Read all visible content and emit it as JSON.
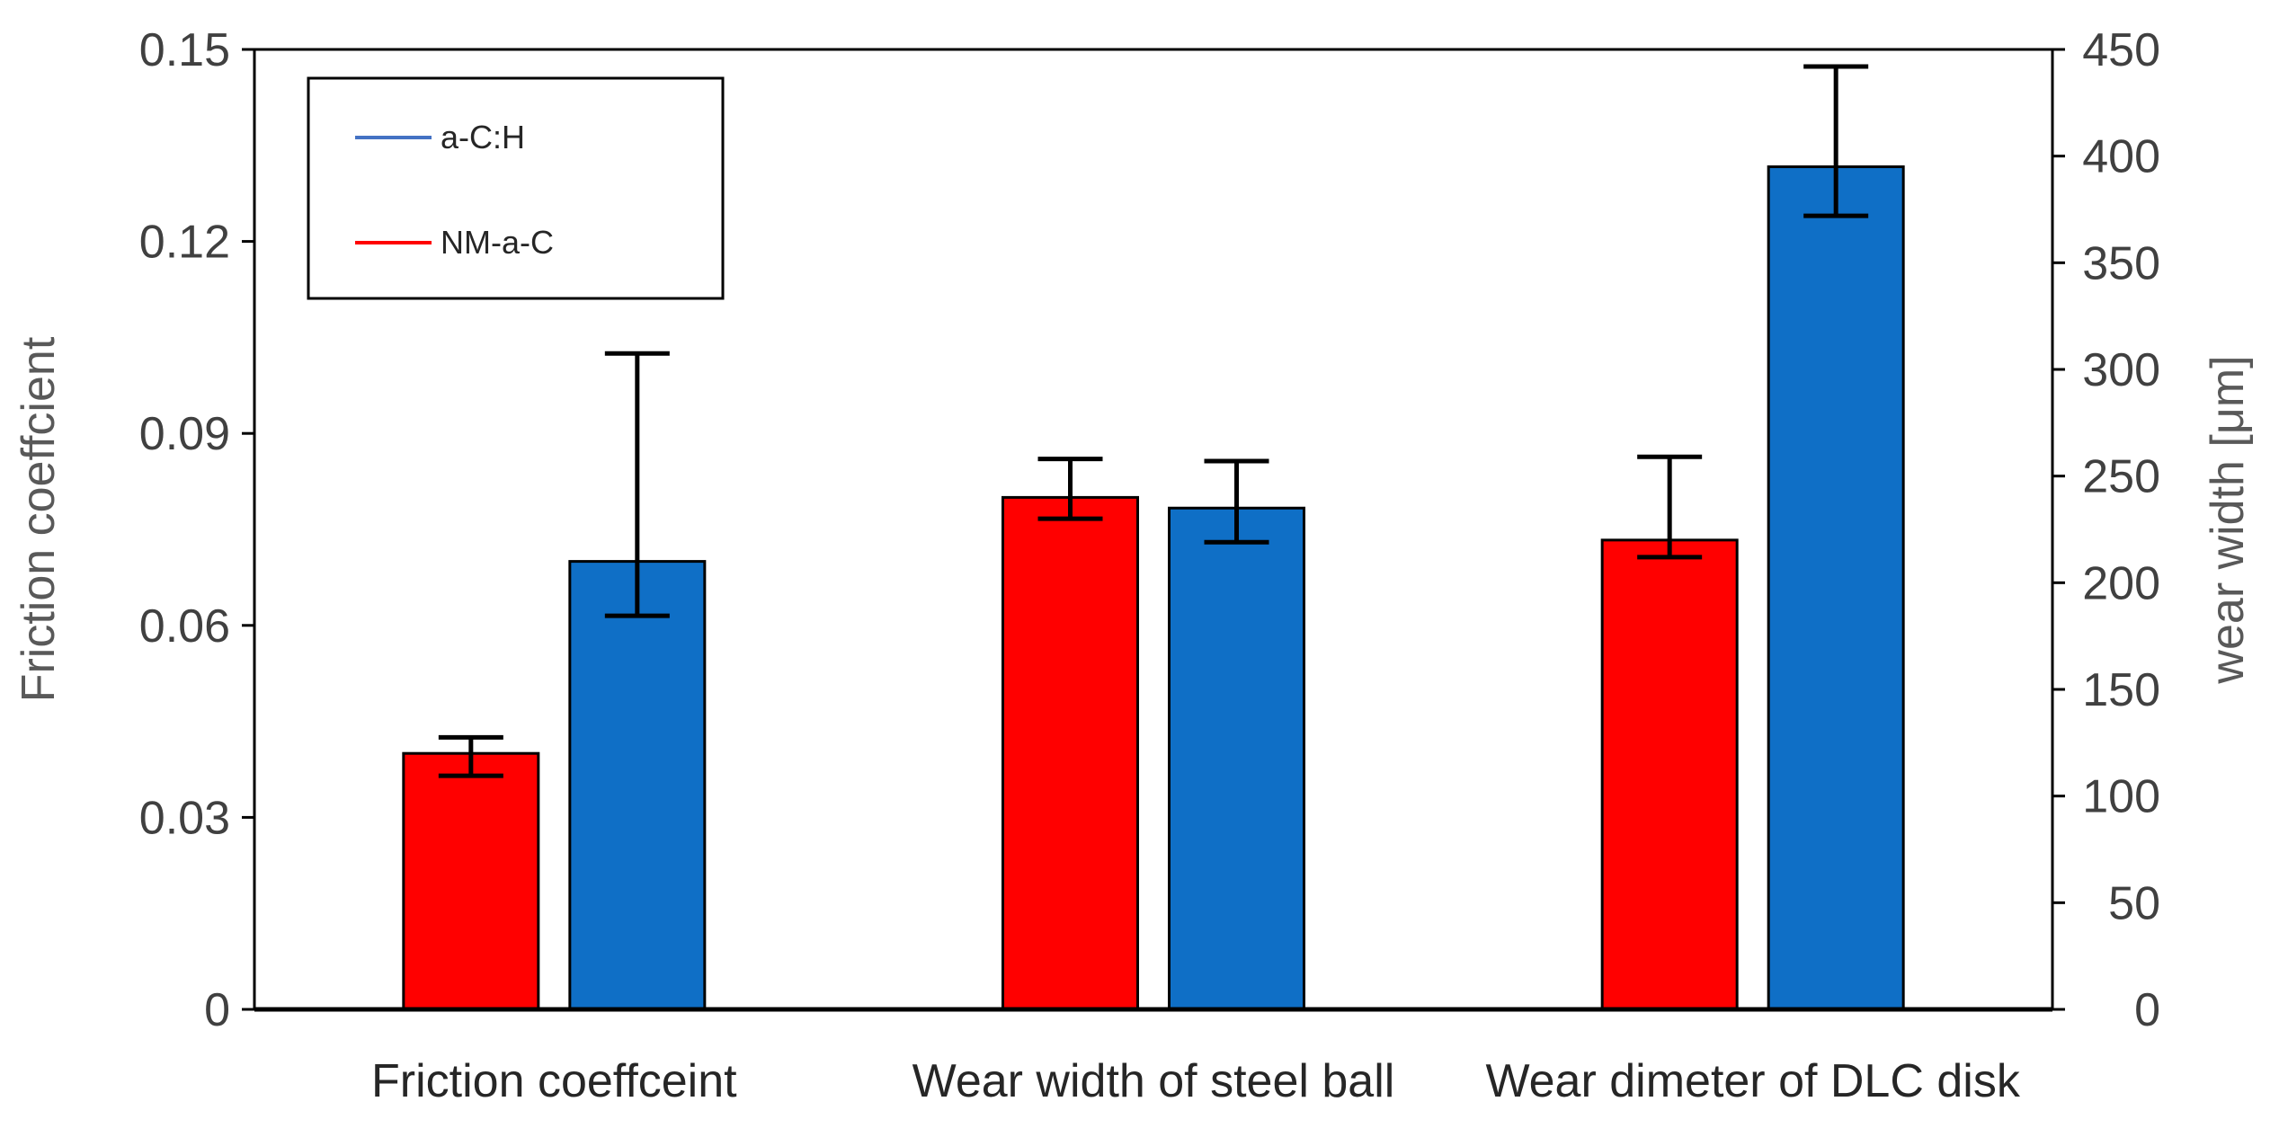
{
  "chart_data": {
    "type": "bar",
    "title": "",
    "categories": [
      "Friction coeffceint",
      "Wear width of steel ball",
      "Wear dimeter of DLC disk"
    ],
    "axes": {
      "left": {
        "label": "Friction coeffcient",
        "ylim": [
          0,
          0.15
        ],
        "ticks": [
          "0",
          "0.03",
          "0.06",
          "0.09",
          "0.12",
          "0.15"
        ]
      },
      "right": {
        "label": "wear width [μm]",
        "ylim": [
          0,
          450
        ],
        "ticks": [
          "0",
          "50",
          "100",
          "150",
          "200",
          "250",
          "300",
          "350",
          "400",
          "450"
        ]
      }
    },
    "series": [
      {
        "name": "NM-a-C",
        "color": "#ff0000",
        "values": [
          0.04,
          240,
          220
        ],
        "axis": [
          "left",
          "right",
          "right"
        ],
        "err_low": [
          0.0365,
          230,
          212
        ],
        "err_high": [
          0.0425,
          258,
          259
        ]
      },
      {
        "name": "a-C:H",
        "color": "#0f6fc6",
        "values": [
          0.07,
          235,
          395
        ],
        "axis": [
          "left",
          "right",
          "right"
        ],
        "err_low": [
          0.0615,
          219,
          372
        ],
        "err_high": [
          0.1025,
          257,
          442
        ]
      }
    ],
    "legend": {
      "position": "top-left",
      "entries": [
        {
          "label": "a-C:H",
          "color": "#4472c4"
        },
        {
          "label": "NM-a-C",
          "color": "#ff0000"
        }
      ]
    },
    "grid": false
  }
}
